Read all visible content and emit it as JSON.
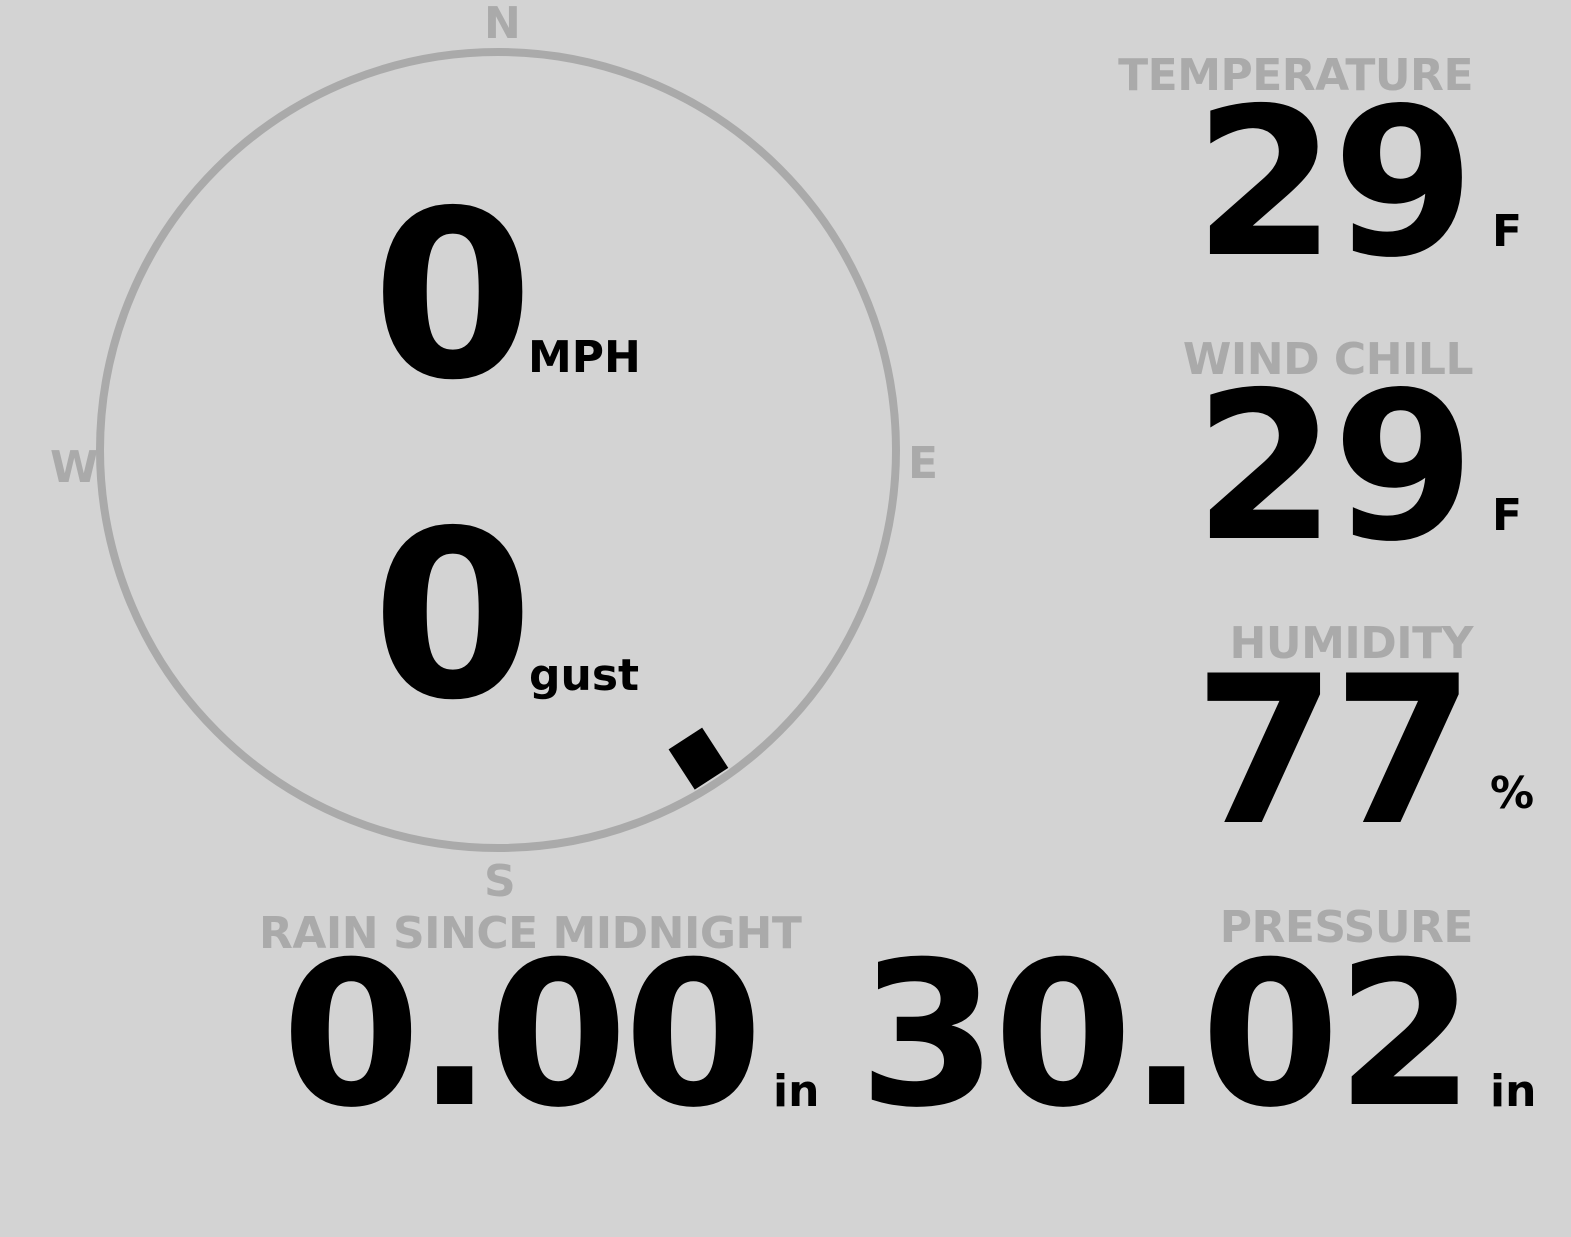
{
  "compass": {
    "north": "N",
    "east": "E",
    "south": "S",
    "west": "W",
    "wind_direction_deg": 147,
    "ring_color": "#aaaaaa",
    "marker_color": "#000000"
  },
  "wind": {
    "speed": "0",
    "speed_unit": "MPH",
    "gust": "0",
    "gust_unit": "gust"
  },
  "temperature": {
    "label": "TEMPERATURE",
    "value": "29",
    "unit": "F"
  },
  "wind_chill": {
    "label": "WIND CHILL",
    "value": "29",
    "unit": "F"
  },
  "humidity": {
    "label": "HUMIDITY",
    "value": "77",
    "unit": "%"
  },
  "rain": {
    "label": "RAIN SINCE MIDNIGHT",
    "value": "0.00",
    "unit": "in"
  },
  "pressure": {
    "label": "PRESSURE",
    "value": "30.02",
    "unit": "in"
  }
}
